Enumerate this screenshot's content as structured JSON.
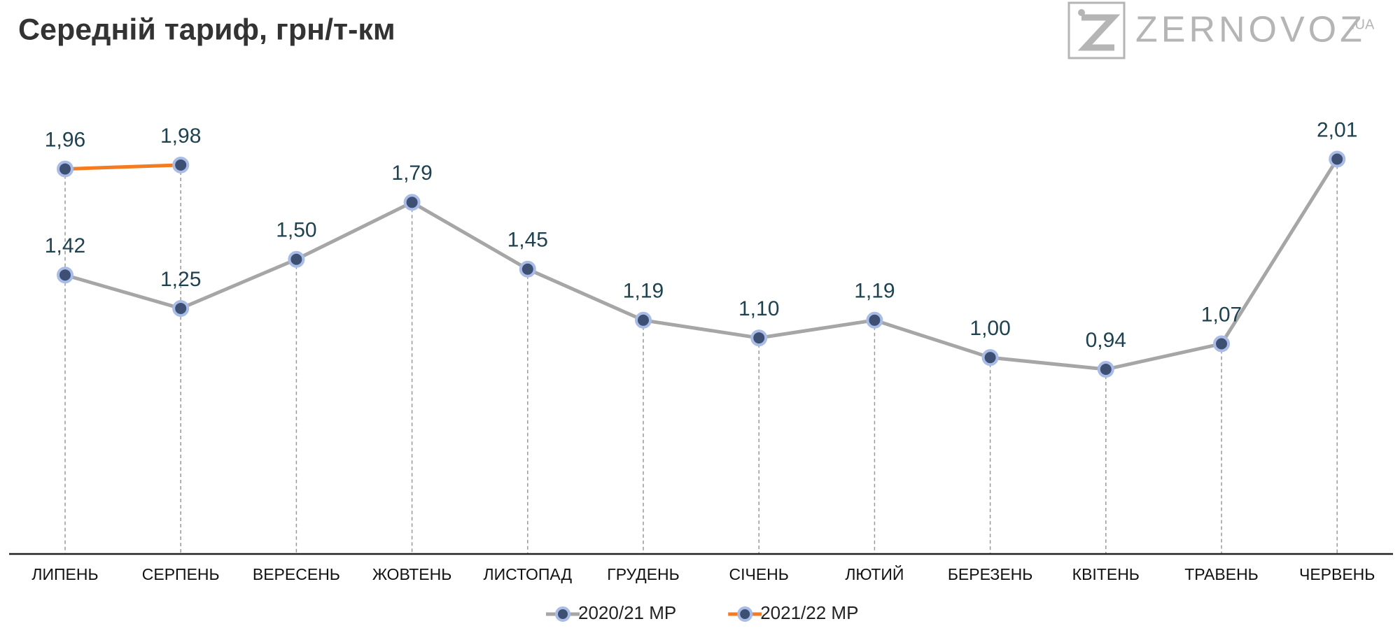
{
  "chart_data": {
    "type": "line",
    "title": "Середній тариф, грн/т-км",
    "brand": "ZERNOVOZ",
    "brand_suffix": ".UA",
    "categories": [
      "ЛИПЕНЬ",
      "СЕРПЕНЬ",
      "ВЕРЕСЕНЬ",
      "ЖОВТЕНЬ",
      "ЛИСТОПАД",
      "ГРУДЕНЬ",
      "СІЧЕНЬ",
      "ЛЮТИЙ",
      "БЕРЕЗЕНЬ",
      "КВІТЕНЬ",
      "ТРАВЕНЬ",
      "ЧЕРВЕНЬ"
    ],
    "series": [
      {
        "name": "2020/21 МР",
        "color": "#a6a6a6",
        "values": [
          1.42,
          1.25,
          1.5,
          1.79,
          1.45,
          1.19,
          1.1,
          1.19,
          1.0,
          0.94,
          1.07,
          2.01
        ],
        "value_labels": [
          "1,42",
          "1,25",
          "1,50",
          "1,79",
          "1,45",
          "1,19",
          "1,10",
          "1,19",
          "1,00",
          "0,94",
          "1,07",
          "2,01"
        ]
      },
      {
        "name": "2021/22 МР",
        "color": "#f47b20",
        "values": [
          1.96,
          1.98,
          null,
          null,
          null,
          null,
          null,
          null,
          null,
          null,
          null,
          null
        ],
        "value_labels": [
          "1,96",
          "1,98",
          null,
          null,
          null,
          null,
          null,
          null,
          null,
          null,
          null,
          null
        ]
      }
    ],
    "ylim": [
      0,
      2.4
    ],
    "marker_color": "#3d4f72",
    "marker_edge": "#a9bce6"
  }
}
